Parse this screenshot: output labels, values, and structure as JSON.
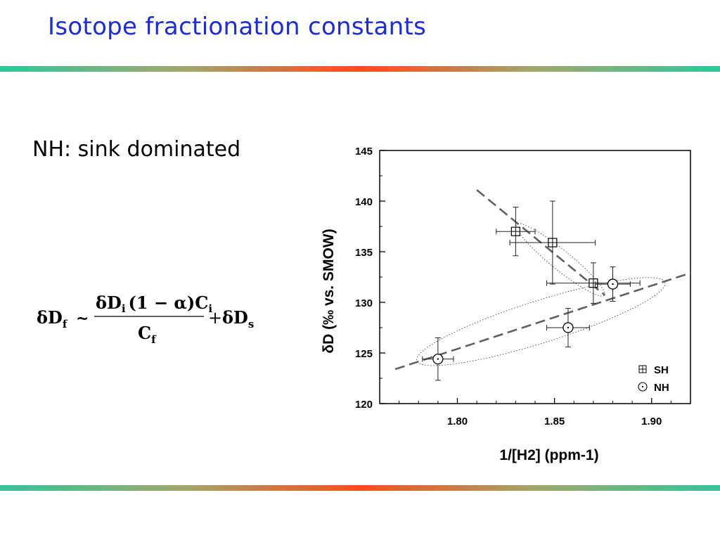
{
  "slide": {
    "title": "Isotope fractionation constants",
    "subtitle": "NH: sink dominated"
  },
  "equation": {
    "lhs": "δD",
    "lhs_sub": "f",
    "relation": "~",
    "num_delta": "δD",
    "num_sub_i": "i",
    "num_paren": "(1 − α)C",
    "num_sub_i2": "i",
    "den": "C",
    "den_sub": "f",
    "plus": "+",
    "tail": "δD",
    "tail_sub": "s"
  },
  "colors": {
    "title": "#1a2ae0",
    "bar_edge": "#2ec79a",
    "bar_center": "#ff4a1c",
    "fit_line": "#606060"
  },
  "chart_data": {
    "type": "scatter",
    "xlabel": "1/[H2] (ppm-1)",
    "ylabel": "δD (‰ vs. SMOW)",
    "xlim": [
      1.76,
      1.92
    ],
    "ylim": [
      120,
      145
    ],
    "xticks": [
      "1.80",
      "1.85",
      "1.90"
    ],
    "yticks": [
      "120",
      "125",
      "130",
      "135",
      "140",
      "145"
    ],
    "legend_position": "bottom-right",
    "series": [
      {
        "name": "SH",
        "marker": "boxed-plus",
        "points": [
          {
            "x": 1.83,
            "y": 137.0,
            "xerr": 0.01,
            "yerr": 2.4
          },
          {
            "x": 1.849,
            "y": 135.9,
            "xerr": 0.022,
            "yerr": 4.1
          },
          {
            "x": 1.87,
            "y": 131.9,
            "xerr": 0.024,
            "yerr": 2.0
          }
        ]
      },
      {
        "name": "NH",
        "marker": "circle-dot",
        "points": [
          {
            "x": 1.79,
            "y": 124.4,
            "xerr": 0.008,
            "yerr": 2.1
          },
          {
            "x": 1.857,
            "y": 127.5,
            "xerr": 0.011,
            "yerr": 1.9
          },
          {
            "x": 1.88,
            "y": 131.8,
            "xerr": 0.009,
            "yerr": 1.7
          }
        ]
      }
    ],
    "fit_lines": [
      {
        "series": "SH",
        "x": [
          1.81,
          1.876
        ],
        "y": [
          141.1,
          130.7
        ]
      },
      {
        "series": "NH",
        "x": [
          1.768,
          1.92
        ],
        "y": [
          123.4,
          132.9
        ]
      }
    ]
  }
}
